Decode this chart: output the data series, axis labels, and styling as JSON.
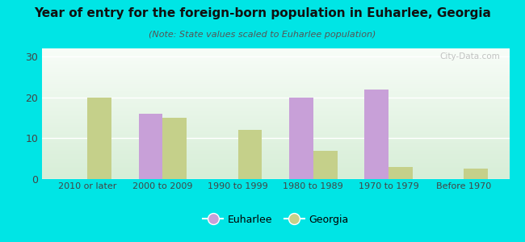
{
  "title": "Year of entry for the foreign-born population in Euharlee, Georgia",
  "subtitle": "(Note: State values scaled to Euharlee population)",
  "categories": [
    "2010 or later",
    "2000 to 2009",
    "1990 to 1999",
    "1980 to 1989",
    "1970 to 1979",
    "Before 1970"
  ],
  "euharlee": [
    0,
    16,
    0,
    20,
    22,
    0
  ],
  "georgia": [
    20,
    15,
    12,
    7,
    3,
    2.5
  ],
  "euharlee_color": "#c8a0d8",
  "georgia_color": "#c5d08a",
  "background_color": "#00e5e5",
  "ylim": [
    0,
    32
  ],
  "yticks": [
    0,
    10,
    20,
    30
  ],
  "bar_width": 0.32,
  "legend_euharlee": "Euharlee",
  "legend_georgia": "Georgia",
  "title_fontsize": 11,
  "subtitle_fontsize": 8,
  "watermark": "City-Data.com"
}
